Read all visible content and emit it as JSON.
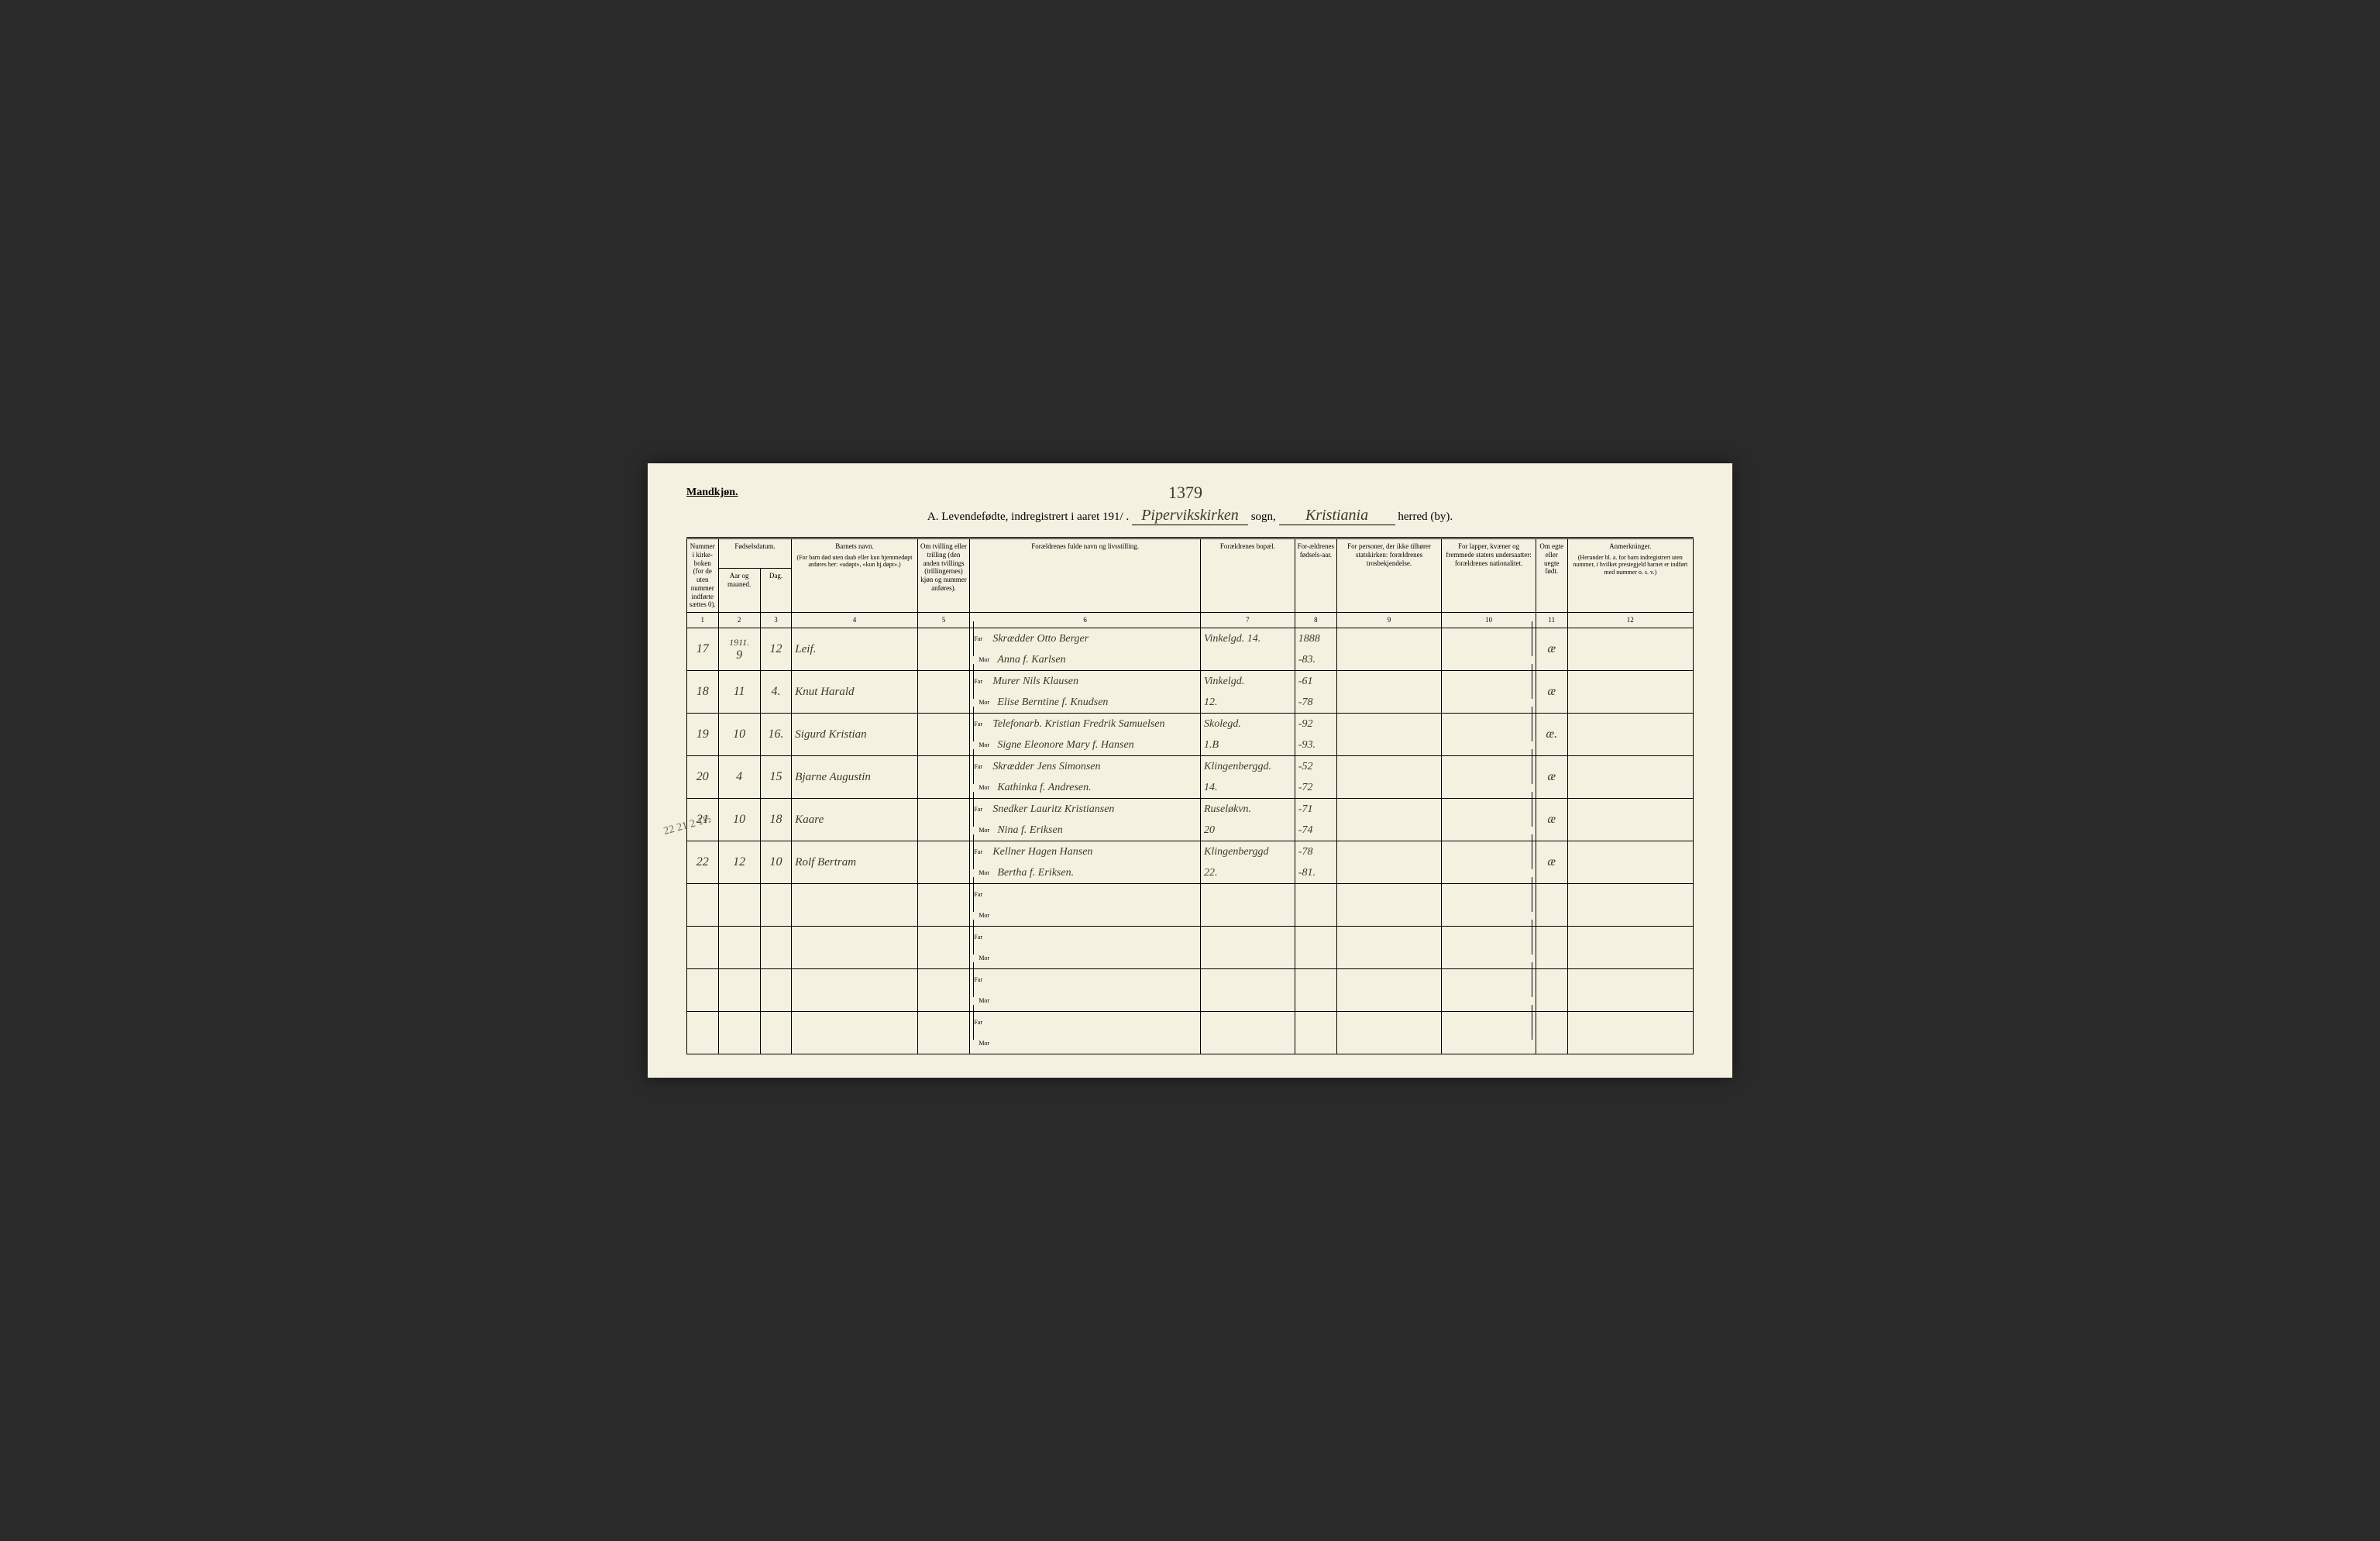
{
  "page": {
    "gender_label": "Mandkjøn.",
    "handwritten_top": "1379",
    "title_prefix": "A. Levendefødte, indregistrert i aaret 191",
    "title_year_suffix": "/ .",
    "parish_handwritten": "Pipervikskirken",
    "parish_label": "sogn,",
    "district_handwritten": "Kristiania",
    "district_label": "herred (by)."
  },
  "headers": {
    "col1": "Nummer i kirke-boken (for de uten nummer indførte sættes 0).",
    "col2_main": "Fødselsdatum.",
    "col2_sub": "Aar og maaned.",
    "col3": "Dag.",
    "col4_main": "Barnets navn.",
    "col4_sub": "(For barn død uten daab eller kun hjemmedøpt anføres her: «udøpt», «kun hj.døpt».)",
    "col5": "Om tvilling eller trilling (den anden tvillings (trillingernes) kjøn og nummer anføres).",
    "col6": "Forældrenes fulde navn og livsstilling.",
    "col7": "Forældrenes bopæl.",
    "col8": "For-ældrenes fødsels-aar.",
    "col9": "For personer, der ikke tilhører statskirken: forældrenes trosbekjendelse.",
    "col10": "For lapper, kvæner og fremmede staters undersaatter: forældrenes nationalitet.",
    "col11": "Om egte eller uegte født.",
    "col12_main": "Anmerkninger.",
    "col12_sub": "(Herunder bl. a. for barn indregistrert uten nummer, i hvilket prestegjeld barnet er indført med nummer o. s. v.)",
    "far_label": "Far",
    "mor_label": "Mor"
  },
  "col_numbers": [
    "1",
    "2",
    "3",
    "4",
    "5",
    "6",
    "7",
    "8",
    "9",
    "10",
    "11",
    "12"
  ],
  "year_prefix": "1911.",
  "rows": [
    {
      "num": "17",
      "month": "9",
      "day": "12",
      "name": "Leif.",
      "far": "Skrædder Otto Berger",
      "mor": "Anna f. Karlsen",
      "address": "Vinkelgd. 14.",
      "address2": "",
      "far_year": "1888",
      "mor_year": "-83.",
      "legit": "æ"
    },
    {
      "num": "18",
      "month": "11",
      "day": "4.",
      "name": "Knut Harald",
      "far": "Murer Nils Klausen",
      "mor": "Elise Berntine f. Knudsen",
      "address": "Vinkelgd.",
      "address2": "12.",
      "far_year": "-61",
      "mor_year": "-78",
      "legit": "æ"
    },
    {
      "num": "19",
      "month": "10",
      "day": "16.",
      "name": "Sigurd Kristian",
      "far": "Telefonarb. Kristian Fredrik Samuelsen",
      "mor": "Signe Eleonore Mary f. Hansen",
      "address": "Skolegd.",
      "address2": "1.B",
      "far_year": "-92",
      "mor_year": "-93.",
      "legit": "æ."
    },
    {
      "num": "20",
      "month": "4",
      "day": "15",
      "name": "Bjarne Augustin",
      "far": "Skrædder Jens Simonsen",
      "mor": "Kathinka f. Andresen.",
      "address": "Klingenberggd.",
      "address2": "14.",
      "far_year": "-52",
      "mor_year": "-72",
      "legit": "æ"
    },
    {
      "num": "21",
      "month": "10",
      "day": "18",
      "name": "Kaare",
      "far": "Snedker Lauritz Kristiansen",
      "mor": "Nina f. Eriksen",
      "address": "Ruseløkvn.",
      "address2": "20",
      "far_year": "-71",
      "mor_year": "-74",
      "legit": "æ"
    },
    {
      "num": "22",
      "month": "12",
      "day": "10",
      "name": "Rolf Bertram",
      "far": "Kellner Hagen Hansen",
      "mor": "Bertha f. Eriksen.",
      "address": "Klingenberggd",
      "address2": "22.",
      "far_year": "-78",
      "mor_year": "-81.",
      "legit": "æ"
    }
  ],
  "empty_rows": 4,
  "margin_note": "22\n21 2 1½",
  "styling": {
    "page_bg": "#f4f1e0",
    "body_bg": "#2a2a2a",
    "ink_color": "#3a3a2a",
    "line_color": "#000000",
    "header_fontsize": 9,
    "cell_fontsize": 15,
    "handwritten_fontsize": 16
  }
}
